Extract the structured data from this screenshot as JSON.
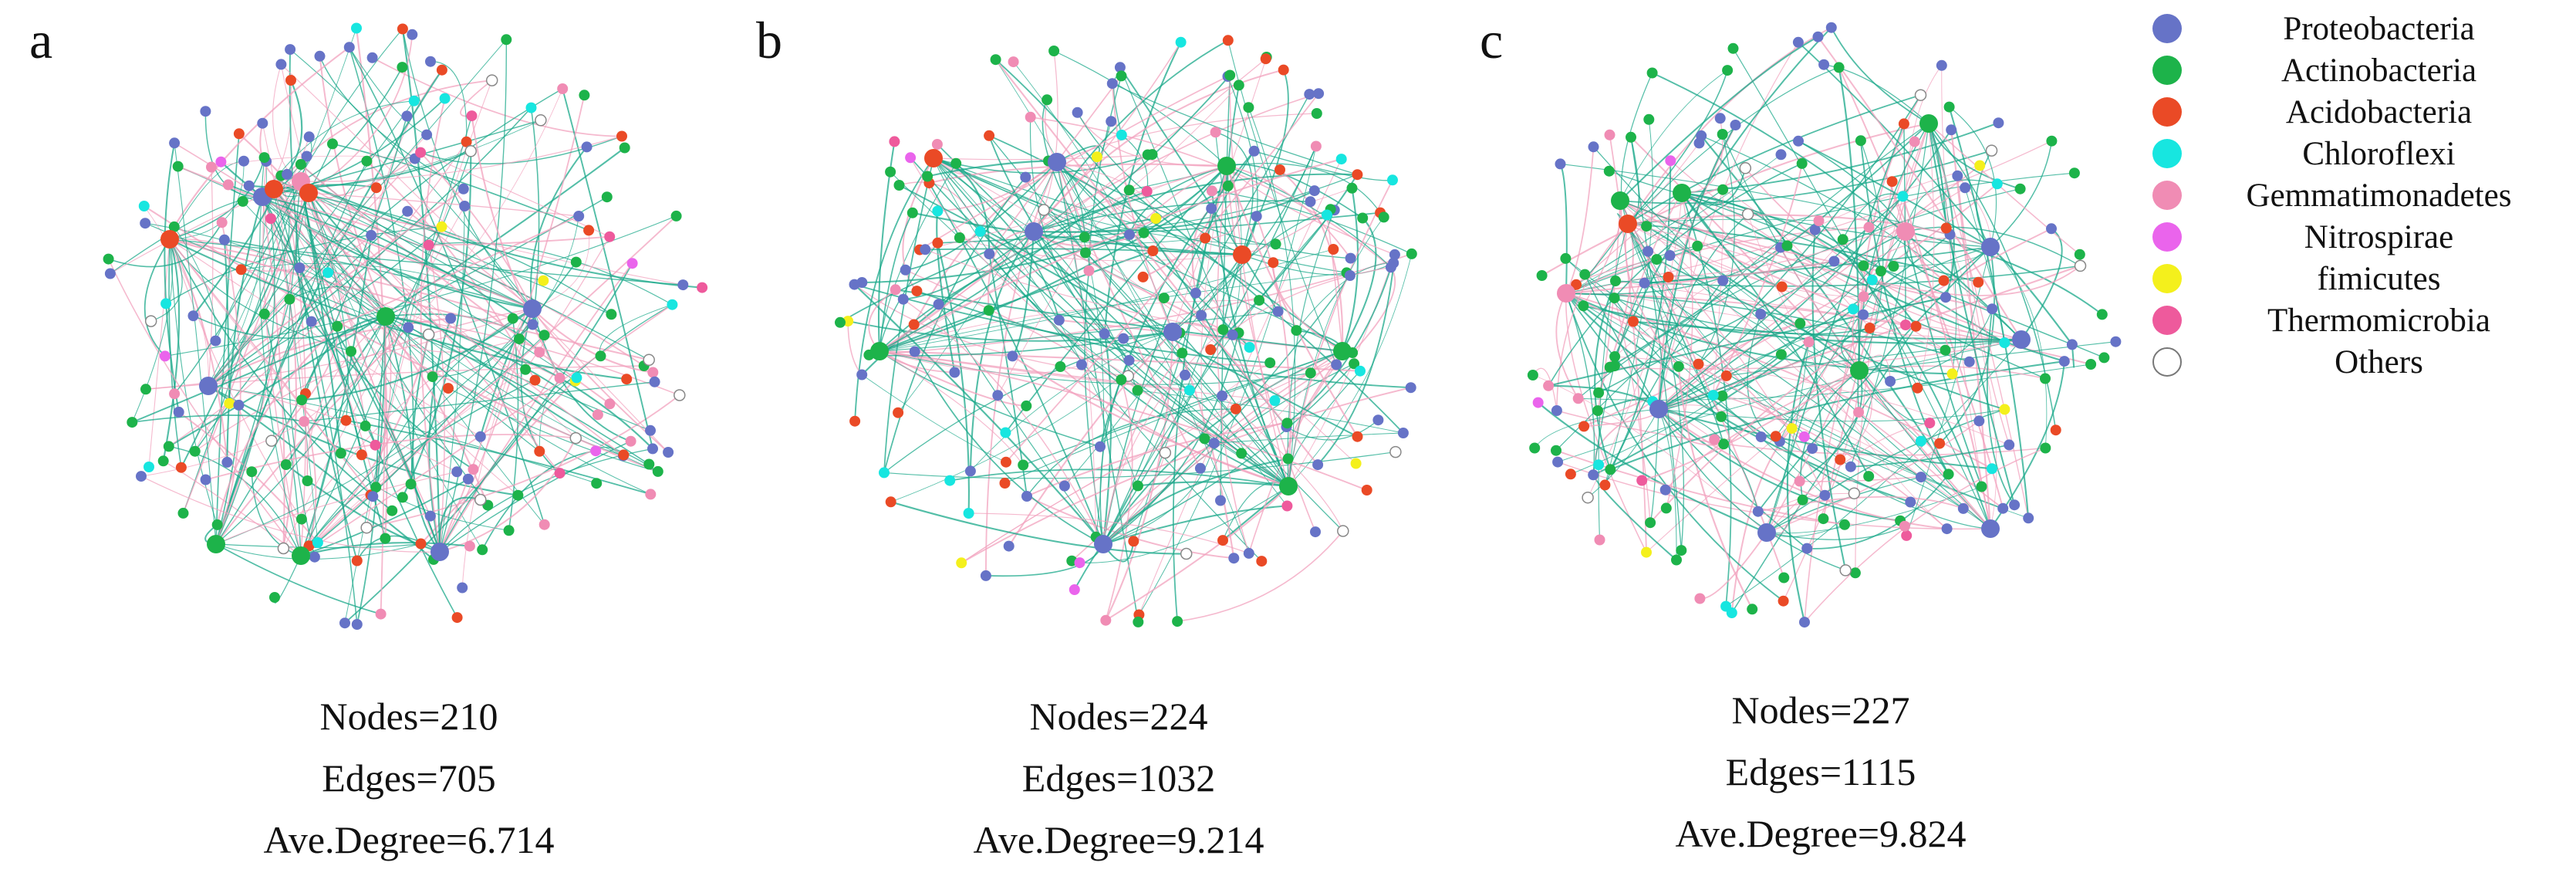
{
  "panels": [
    {
      "id": "a",
      "letter": "a",
      "nodes_text": "Nodes=210",
      "edges_text": "Edges=705",
      "degree_text": "Ave.Degree=6.714"
    },
    {
      "id": "b",
      "letter": "b",
      "nodes_text": "Nodes=224",
      "edges_text": "Edges=1032",
      "degree_text": "Ave.Degree=9.214"
    },
    {
      "id": "c",
      "letter": "c",
      "nodes_text": "Nodes=227",
      "edges_text": "Edges=1115",
      "degree_text": "Ave.Degree=9.824"
    }
  ],
  "legend": [
    {
      "label": "Proteobacteria",
      "color": "#6673c7"
    },
    {
      "label": "Actinobacteria",
      "color": "#1db34a"
    },
    {
      "label": "Acidobacteria",
      "color": "#ea4a26"
    },
    {
      "label": "Chloroflexi",
      "color": "#17e6e0"
    },
    {
      "label": "Gemmatimonadetes",
      "color": "#f08cb4"
    },
    {
      "label": "Nitrospirae",
      "color": "#ea64ec"
    },
    {
      "label": "fimicutes",
      "color": "#f4f01c"
    },
    {
      "label": "Thermomicrobia",
      "color": "#ee5a9c"
    },
    {
      "label": "Others",
      "color": "#ffffff"
    }
  ],
  "edge_colors": {
    "positive": "#1aa88a",
    "negative": "#f2a2be"
  }
}
